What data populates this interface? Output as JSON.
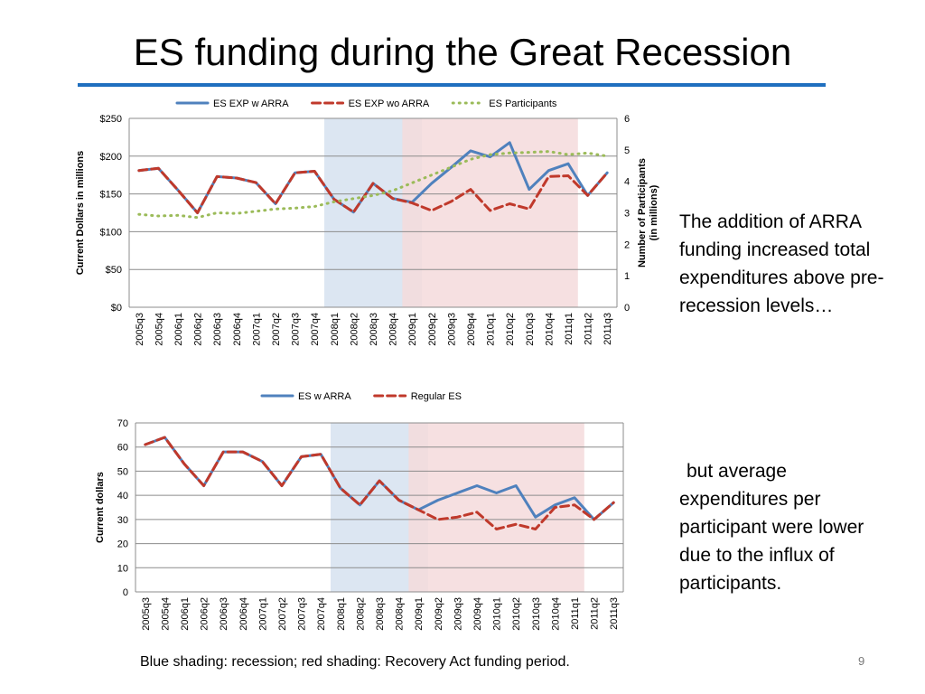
{
  "slide": {
    "title": "ES funding during the Great Recession",
    "note1": "The addition of ARRA funding increased total expenditures above pre-recession levels…",
    "note2": "but average expenditures per participant were lower due to the influx of participants.",
    "caption": "Blue shading: recession; red shading: Recovery Act funding period.",
    "page_number": "9"
  },
  "colors": {
    "series_blue": "#4f81bd",
    "series_red": "#c0392b",
    "series_green": "#9bbb59",
    "recession_shade": "#dce6f2",
    "arra_shade": "#f5dbdc",
    "title_rule": "#1f6fbf"
  },
  "chart_data": [
    {
      "type": "line",
      "categories": [
        "2005q3",
        "2005q4",
        "2006q1",
        "2006q2",
        "2006q3",
        "2006q4",
        "2007q1",
        "2007q2",
        "2007q3",
        "2007q4",
        "2008q1",
        "2008q2",
        "2008q3",
        "2008q4",
        "2009q1",
        "2009q2",
        "2009q3",
        "2009q4",
        "2010q1",
        "2010q2",
        "2010q3",
        "2010q4",
        "2011q1",
        "2011q2",
        "2011q3"
      ],
      "ylabel": "Current Dollars in millions",
      "y2label": "Number of Participants (in millions)",
      "ylim": [
        0,
        250
      ],
      "y2lim": [
        0,
        6
      ],
      "yticks": [
        "$0",
        "$50",
        "$100",
        "$150",
        "$200",
        "$250"
      ],
      "y2ticks": [
        "0",
        "1",
        "2",
        "3",
        "4",
        "5",
        "6"
      ],
      "legend_position": "top",
      "recession_shading": [
        "2008q1",
        "2009q2"
      ],
      "arra_shading": [
        "2009q1",
        "2011q2"
      ],
      "series": [
        {
          "name": "ES EXP w ARRA",
          "axis": "left",
          "style": "solid",
          "color": "#4f81bd",
          "values": [
            181,
            184,
            155,
            125,
            173,
            171,
            165,
            137,
            178,
            180,
            143,
            126,
            164,
            144,
            139,
            164,
            185,
            207,
            199,
            218,
            156,
            181,
            190,
            148,
            178
          ]
        },
        {
          "name": "ES EXP wo ARRA",
          "axis": "left",
          "style": "dashed",
          "color": "#c0392b",
          "values": [
            181,
            184,
            155,
            125,
            173,
            171,
            165,
            137,
            178,
            180,
            143,
            126,
            164,
            144,
            138,
            128,
            140,
            156,
            128,
            137,
            130,
            173,
            174,
            148,
            178
          ]
        },
        {
          "name": "ES Participants",
          "axis": "right",
          "style": "dotted",
          "color": "#9bbb59",
          "values": [
            2.95,
            2.9,
            2.92,
            2.85,
            3.0,
            2.98,
            3.05,
            3.12,
            3.15,
            3.2,
            3.35,
            3.45,
            3.55,
            3.7,
            3.95,
            4.2,
            4.45,
            4.7,
            4.85,
            4.9,
            4.92,
            4.95,
            4.85,
            4.9,
            4.8
          ]
        }
      ]
    },
    {
      "type": "line",
      "categories": [
        "2005q3",
        "2005q4",
        "2006q1",
        "2006q2",
        "2006q3",
        "2006q4",
        "2007q1",
        "2007q2",
        "2007q3",
        "2007q4",
        "2008q1",
        "2008q2",
        "2008q3",
        "2008q4",
        "2009q1",
        "2009q2",
        "2009q3",
        "2009q4",
        "2010q1",
        "2010q2",
        "2010q3",
        "2010q4",
        "2011q1",
        "2011q2",
        "2011q3"
      ],
      "ylabel": "Current dollars",
      "ylim": [
        0,
        70
      ],
      "yticks": [
        "0",
        "10",
        "20",
        "30",
        "40",
        "50",
        "60",
        "70"
      ],
      "legend_position": "top",
      "recession_shading": [
        "2008q1",
        "2009q2"
      ],
      "arra_shading": [
        "2009q1",
        "2011q2"
      ],
      "series": [
        {
          "name": "ES w ARRA",
          "style": "solid",
          "color": "#4f81bd",
          "values": [
            61,
            64,
            53,
            44,
            58,
            58,
            54,
            44,
            56,
            57,
            43,
            36,
            46,
            38,
            34,
            38,
            41,
            44,
            41,
            44,
            31,
            36,
            39,
            30,
            37
          ]
        },
        {
          "name": "Regular ES",
          "style": "dashed",
          "color": "#c0392b",
          "values": [
            61,
            64,
            53,
            44,
            58,
            58,
            54,
            44,
            56,
            57,
            43,
            36,
            46,
            38,
            34,
            30,
            31,
            33,
            26,
            28,
            26,
            35,
            36,
            30,
            37
          ]
        }
      ]
    }
  ]
}
